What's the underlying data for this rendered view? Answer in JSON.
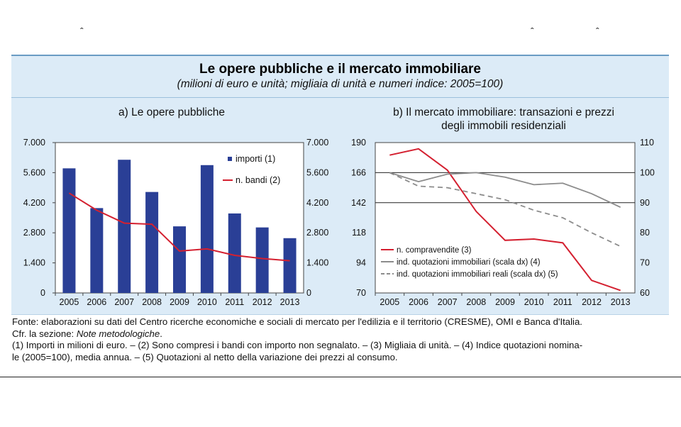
{
  "decorations": {
    "caret": "ˆ"
  },
  "header": {
    "title": "Le opere pubbliche e il mercato immobiliare",
    "subtitle": "(milioni di euro e unità; migliaia di unità e numeri indice: 2005=100)"
  },
  "chart_data": [
    {
      "type": "bar",
      "title": "a) Le opere pubbliche",
      "categories": [
        "2005",
        "2006",
        "2007",
        "2008",
        "2009",
        "2010",
        "2011",
        "2012",
        "2013"
      ],
      "series": [
        {
          "name": "importi (1)",
          "kind": "bar",
          "axis": "left",
          "values": [
            5800,
            3950,
            6200,
            4700,
            3100,
            5950,
            3700,
            3050,
            2550
          ]
        },
        {
          "name": "n. bandi (2)",
          "kind": "line",
          "axis": "right",
          "values": [
            4650,
            3850,
            3250,
            3200,
            1950,
            2050,
            1750,
            1600,
            1500
          ]
        }
      ],
      "ylim": [
        0,
        7000
      ],
      "y_ticks": [
        "0",
        "1.400",
        "2.800",
        "4.200",
        "5.600",
        "7.000"
      ],
      "y2lim": [
        0,
        7000
      ],
      "y2_ticks": [
        "0",
        "1.400",
        "2.800",
        "4.200",
        "5.600",
        "7.000"
      ],
      "colors": {
        "bar": "#2a3f96",
        "line": "#d42030"
      },
      "legend": "top-right"
    },
    {
      "type": "line",
      "title_lines": [
        "b) Il mercato immobiliare: transazioni e prezzi",
        "degli immobili residenziali"
      ],
      "categories": [
        "2005",
        "2006",
        "2007",
        "2008",
        "2009",
        "2010",
        "2011",
        "2012",
        "2013"
      ],
      "series": [
        {
          "name": "n. compravendite (3)",
          "axis": "left",
          "style": "solid",
          "color": "#d42030",
          "values": [
            180,
            185,
            168,
            135,
            112,
            113,
            110,
            80,
            72
          ]
        },
        {
          "name": "ind. quotazioni immobiliari (scala dx) (4)",
          "axis": "right",
          "style": "solid",
          "color": "#8c8c8c",
          "values": [
            100,
            97,
            99.5,
            100,
            98.5,
            96,
            96.5,
            93,
            88.5
          ]
        },
        {
          "name": "ind. quotazioni immobiliari reali (scala dx) (5)",
          "axis": "right",
          "style": "dashed",
          "color": "#8c8c8c",
          "values": [
            100,
            95.5,
            95,
            93,
            91,
            87.5,
            85,
            80,
            75.5
          ]
        }
      ],
      "ylim": [
        70,
        190
      ],
      "y_ticks": [
        "70",
        "94",
        "118",
        "142",
        "166",
        "190"
      ],
      "y2lim": [
        60,
        110
      ],
      "y2_ticks": [
        "60",
        "70",
        "80",
        "90",
        "100",
        "110"
      ],
      "gridlines": [
        166,
        142
      ],
      "legend": "bottom-left"
    }
  ],
  "notes": {
    "line1": "Fonte: elaborazioni su dati del Centro ricerche economiche e sociali di mercato per l'edilizia e il territorio (CRESME), OMI e Banca d'Italia.",
    "line2_prefix": "Cfr. la sezione: ",
    "line2_italic": "Note metodologiche",
    "line2_suffix": ".",
    "line3": "(1) Importi in milioni di euro. – (2) Sono compresi i bandi con importo non segnalato. – (3) Migliaia di unità. – (4) Indice quotazioni nomina-",
    "line4": "le (2005=100), media annua. – (5) Quotazioni al netto della variazione dei prezzi al consumo."
  }
}
